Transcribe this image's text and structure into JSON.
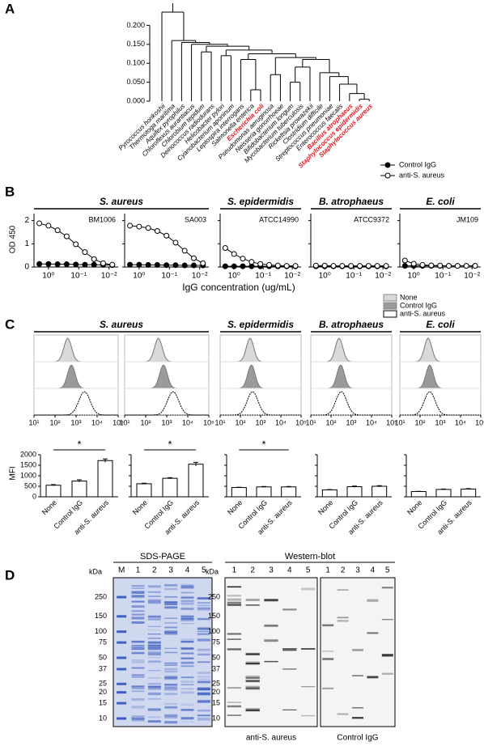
{
  "panelA": {
    "label": "A",
    "ylim": [
      0,
      0.25
    ],
    "yticks": [
      {
        "value": 0,
        "label": "0.000"
      },
      {
        "value": 0.05,
        "label": "0.050"
      },
      {
        "value": 0.1,
        "label": "0.100"
      },
      {
        "value": 0.15,
        "label": "0.150"
      },
      {
        "value": 0.2,
        "label": "0.200"
      }
    ],
    "tree": {
      "height": 0.235,
      "children": [
        {
          "name": "Pyrococcus horikoshii",
          "color": "#000000"
        },
        {
          "height": 0.16,
          "children": [
            {
              "name": "Thermotoga maritima",
              "color": "#000000"
            },
            {
              "height": 0.155,
              "children": [
                {
                  "name": "Aquifex pyrophilus",
                  "color": "#000000"
                },
                {
                  "height": 0.15,
                  "children": [
                    {
                      "name": "Chloroflexus aurantiacus",
                      "color": "#000000"
                    },
                    {
                      "height": 0.145,
                      "children": [
                        {
                          "height": 0.13,
                          "children": [
                            {
                              "name": "Chlorobium tepidum",
                              "color": "#000000"
                            },
                            {
                              "name": "Deinococcus radiodurans",
                              "color": "#000000"
                            }
                          ]
                        },
                        {
                          "height": 0.135,
                          "children": [
                            {
                              "height": 0.12,
                              "children": [
                                {
                                  "name": "Helicobacter pylori",
                                  "color": "#000000"
                                },
                                {
                                  "name": "Cyanobacterium aponinum",
                                  "color": "#000000"
                                }
                              ]
                            },
                            {
                              "height": 0.125,
                              "children": [
                                {
                                  "height": 0.11,
                                  "children": [
                                    {
                                      "name": "Leptospira interrogans",
                                      "color": "#000000"
                                    },
                                    {
                                      "height": 0.03,
                                      "children": [
                                        {
                                          "name": "Salmonella enterica",
                                          "color": "#000000"
                                        },
                                        {
                                          "name": "Escherichia coli",
                                          "color": "#e8141c"
                                        }
                                      ]
                                    }
                                  ]
                                },
                                {
                                  "height": 0.115,
                                  "children": [
                                    {
                                      "height": 0.07,
                                      "children": [
                                        {
                                          "name": "Pseudomonas aeruginosa",
                                          "color": "#000000"
                                        },
                                        {
                                          "name": "Neisseria gonorrhoeae",
                                          "color": "#000000"
                                        }
                                      ]
                                    },
                                    {
                                      "height": 0.11,
                                      "children": [
                                        {
                                          "height": 0.09,
                                          "children": [
                                            {
                                              "height": 0.05,
                                              "children": [
                                                {
                                                  "name": "Bifidobacterium longum",
                                                  "color": "#000000"
                                                },
                                                {
                                                  "name": "Mycobacterium tuberculosis",
                                                  "color": "#000000"
                                                }
                                              ]
                                            },
                                            {
                                              "name": "Rickettsia prowazekii",
                                              "color": "#000000"
                                            }
                                          ]
                                        },
                                        {
                                          "height": 0.075,
                                          "children": [
                                            {
                                              "name": "Clostridium difficile",
                                              "color": "#000000"
                                            },
                                            {
                                              "height": 0.065,
                                              "children": [
                                                {
                                                  "name": "Streptococcus pneumoniae",
                                                  "color": "#000000"
                                                },
                                                {
                                                  "height": 0.045,
                                                  "children": [
                                                    {
                                                      "name": "Enterococcus faecalis",
                                                      "color": "#000000"
                                                    },
                                                    {
                                                      "height": 0.02,
                                                      "children": [
                                                        {
                                                          "name": "Bacillus atrophaeus",
                                                          "color": "#e8141c"
                                                        },
                                                        {
                                                          "height": 0.005,
                                                          "children": [
                                                            {
                                                              "name": "Staphylococcus epidermidis",
                                                              "color": "#e8141c"
                                                            },
                                                            {
                                                              "name": "Staphylococcus aureus",
                                                              "color": "#e8141c"
                                                            }
                                                          ]
                                                        }
                                                      ]
                                                    }
                                                  ]
                                                }
                                              ]
                                            }
                                          ]
                                        }
                                      ]
                                    }
                                  ]
                                }
                              ]
                            }
                          ]
                        }
                      ]
                    }
                  ]
                }
              ]
            }
          ]
        }
      ]
    }
  },
  "panelB": {
    "label": "B",
    "xlabel": "IgG concentration (ug/mL)",
    "ylabel": "OD 450",
    "log_x": true,
    "xlim": [
      3,
      0.005
    ],
    "xticks": [
      {
        "value": 1,
        "label": "10⁰"
      },
      {
        "value": 0.1,
        "label": "10⁻¹"
      },
      {
        "value": 0.01,
        "label": "10⁻²"
      }
    ],
    "ylim": [
      0,
      2.3
    ],
    "yticks": [
      0,
      1,
      2
    ],
    "x": [
      2,
      1,
      0.5,
      0.25,
      0.125,
      0.0625,
      0.03125,
      0.015625,
      0.0078125
    ],
    "series": [
      {
        "name": "Control IgG",
        "fill": "#000000"
      },
      {
        "name": "anti-S. aureus",
        "fill": "#ffffff"
      }
    ],
    "groups": [
      {
        "name": "S. aureus",
        "panels": [
          {
            "strain": "BM1006",
            "values": [
              [
                0.13,
                0.13,
                0.12,
                0.12,
                0.11,
                0.1,
                0.1,
                0.09,
                0.08
              ],
              [
                1.88,
                1.78,
                1.58,
                1.32,
                0.98,
                0.64,
                0.34,
                0.16,
                0.1
              ]
            ]
          },
          {
            "strain": "SA003",
            "values": [
              [
                0.1,
                0.1,
                0.09,
                0.09,
                0.08,
                0.08,
                0.07,
                0.07,
                0.07
              ],
              [
                1.78,
                1.74,
                1.68,
                1.55,
                1.35,
                1.05,
                0.7,
                0.38,
                0.16
              ]
            ]
          }
        ]
      },
      {
        "name": "S. epidermidis",
        "panels": [
          {
            "strain": "ATCC14990",
            "values": [
              [
                0.03,
                0.03,
                0.03,
                0.03,
                0.03,
                0.03,
                0.03,
                0.03,
                0.03
              ],
              [
                0.82,
                0.56,
                0.36,
                0.22,
                0.13,
                0.09,
                0.06,
                0.05,
                0.05
              ]
            ]
          }
        ]
      },
      {
        "name": "B. atrophaeus",
        "panels": [
          {
            "strain": "ATCC9372",
            "values": [
              [
                0.03,
                0.03,
                0.03,
                0.03,
                0.03,
                0.03,
                0.03,
                0.03,
                0.03
              ],
              [
                0.06,
                0.06,
                0.05,
                0.05,
                0.05,
                0.05,
                0.05,
                0.05,
                0.05
              ]
            ]
          }
        ]
      },
      {
        "name": "E. coli",
        "panels": [
          {
            "strain": "JM109",
            "values": [
              [
                0.05,
                0.05,
                0.05,
                0.05,
                0.05,
                0.05,
                0.05,
                0.05,
                0.05
              ],
              [
                0.28,
                0.14,
                0.09,
                0.07,
                0.06,
                0.05,
                0.05,
                0.05,
                0.05
              ]
            ]
          }
        ]
      }
    ]
  },
  "panelC": {
    "label": "C",
    "log_x": true,
    "hist_xlim": [
      10,
      100000
    ],
    "hist_xticks": [
      {
        "value": 10,
        "label": "10¹"
      },
      {
        "value": 100,
        "label": "10²"
      },
      {
        "value": 1000,
        "label": "10³"
      },
      {
        "value": 10000,
        "label": "10⁴"
      },
      {
        "value": 100000,
        "label": "10⁵"
      }
    ],
    "series": [
      {
        "name": "None",
        "color": "#d9d9d9"
      },
      {
        "name": "Control IgG",
        "color": "#9a9a9a"
      },
      {
        "name": "anti-S. aureus",
        "color": "#ffffff"
      }
    ],
    "categories": [
      "None",
      "Control IgG",
      "anti-S. aureus"
    ],
    "ylabel": "MFI",
    "ylim": [
      0,
      2000
    ],
    "yticks": [
      0,
      500,
      1000,
      1500,
      2000
    ],
    "groups": [
      {
        "name": "S. aureus",
        "panels": [
          {
            "strain": "BM1006",
            "peaks": [
              400,
              600,
              2500
            ],
            "mfi": [
              550,
              750,
              1720
            ],
            "errors": [
              30,
              60,
              80
            ],
            "significance": "*"
          },
          {
            "strain": "SA003",
            "peaks": [
              400,
              700,
              2000
            ],
            "mfi": [
              620,
              880,
              1550
            ],
            "errors": [
              25,
              30,
              90
            ],
            "significance": "*"
          }
        ]
      },
      {
        "name": "S. epidermidis",
        "panels": [
          {
            "strain": "ATCC14990",
            "peaks": [
              300,
              350,
              400
            ],
            "mfi": [
              440,
              470,
              470
            ],
            "errors": [
              15,
              20,
              20
            ],
            "significance": "*"
          }
        ]
      },
      {
        "name": "B. atrophaeus",
        "panels": [
          {
            "strain": "ATCC9372",
            "peaks": [
              250,
              300,
              320
            ],
            "mfi": [
              330,
              480,
              500
            ],
            "errors": [
              15,
              30,
              30
            ]
          }
        ]
      },
      {
        "name": "E. coli",
        "panels": [
          {
            "strain": "JM109",
            "peaks": [
              250,
              300,
              300
            ],
            "mfi": [
              250,
              350,
              370
            ],
            "errors": [
              10,
              20,
              20
            ]
          }
        ]
      }
    ]
  },
  "panelD": {
    "label": "D",
    "kda_label": "kDa",
    "markers": [
      250,
      150,
      100,
      75,
      50,
      37,
      25,
      20,
      15,
      10
    ],
    "sds": {
      "title": "SDS-PAGE",
      "lanes": [
        "M",
        "1",
        "2",
        "3",
        "4",
        "5"
      ]
    },
    "western": {
      "title": "Western-blot",
      "blots": [
        {
          "caption": "anti-S. aureus",
          "lanes": [
            "1",
            "2",
            "3",
            "4",
            "5"
          ]
        },
        {
          "caption": "Control IgG",
          "lanes": [
            "1",
            "2",
            "3",
            "4",
            "5"
          ]
        }
      ]
    }
  }
}
